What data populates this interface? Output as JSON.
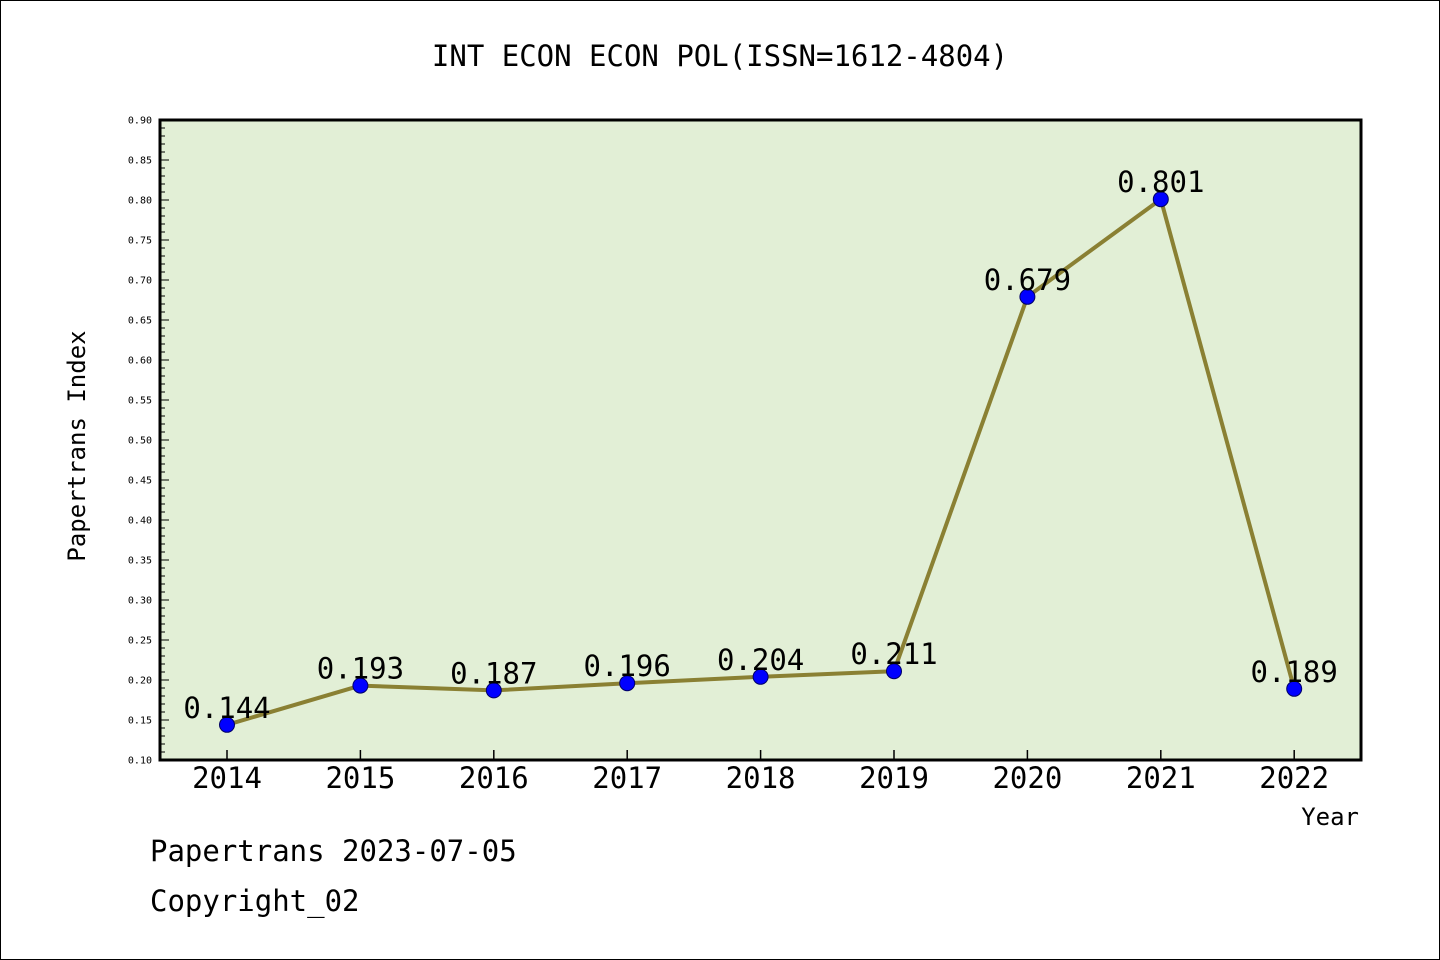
{
  "colors": {
    "plot_background": "#e2efd6",
    "line": "#8a8033",
    "marker_fill": "#0000ff",
    "marker_stroke": "#000066",
    "axis": "#000000"
  },
  "chart_data": {
    "type": "line",
    "title": "INT ECON ECON POL(ISSN=1612-4804)",
    "xlabel": "Year",
    "ylabel": "Papertrans Index",
    "categories": [
      "2014",
      "2015",
      "2016",
      "2017",
      "2018",
      "2019",
      "2020",
      "2021",
      "2022"
    ],
    "series": [
      {
        "values": [
          0.144,
          0.193,
          0.187,
          0.196,
          0.204,
          0.211,
          0.679,
          0.801,
          0.189
        ]
      }
    ],
    "data_labels": [
      "0.144",
      "0.193",
      "0.187",
      "0.196",
      "0.204",
      "0.211",
      "0.679",
      "0.801",
      "0.189"
    ],
    "ylim": [
      0.1,
      0.9
    ],
    "yticks": [
      "0.10",
      "0.15",
      "0.20",
      "0.25",
      "0.30",
      "0.35",
      "0.40",
      "0.45",
      "0.50",
      "0.55",
      "0.60",
      "0.65",
      "0.70",
      "0.75",
      "0.80",
      "0.85",
      "0.90"
    ],
    "grid": false,
    "legend": "none"
  },
  "footer": {
    "date_line": "Papertrans 2023-07-05",
    "copyright_line": "Copyright_02"
  }
}
